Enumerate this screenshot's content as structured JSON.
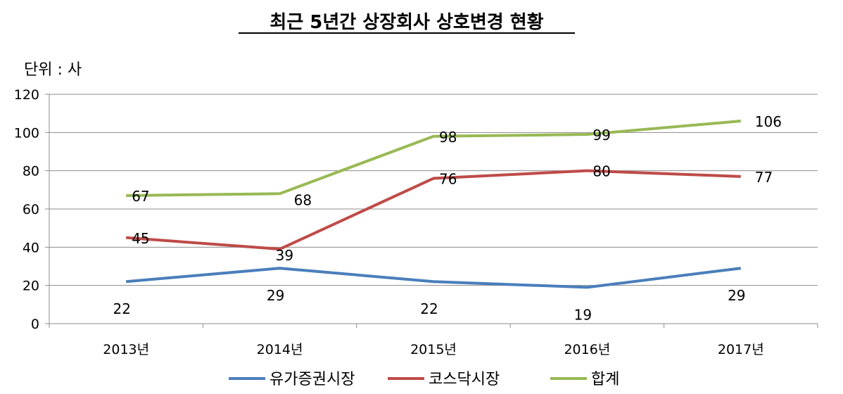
{
  "chart_data": {
    "type": "line",
    "title": "최근 5년간 상장회사 상호변경 현황",
    "unit_label": "단위 : 사",
    "categories": [
      "2013년",
      "2014년",
      "2015년",
      "2016년",
      "2017년"
    ],
    "ylim": [
      0,
      120
    ],
    "yticks": [
      "0",
      "20",
      "40",
      "60",
      "80",
      "100",
      "120"
    ],
    "grid": true,
    "legend_position": "bottom",
    "series": [
      {
        "name": "유가증권시장",
        "color": "#4a7ebb",
        "values": [
          22,
          29,
          22,
          19,
          29
        ]
      },
      {
        "name": "코스닥시장",
        "color": "#be4b48",
        "values": [
          45,
          39,
          76,
          80,
          77
        ]
      },
      {
        "name": "합계",
        "color": "#98b954",
        "values": [
          67,
          68,
          98,
          99,
          106
        ]
      }
    ]
  }
}
